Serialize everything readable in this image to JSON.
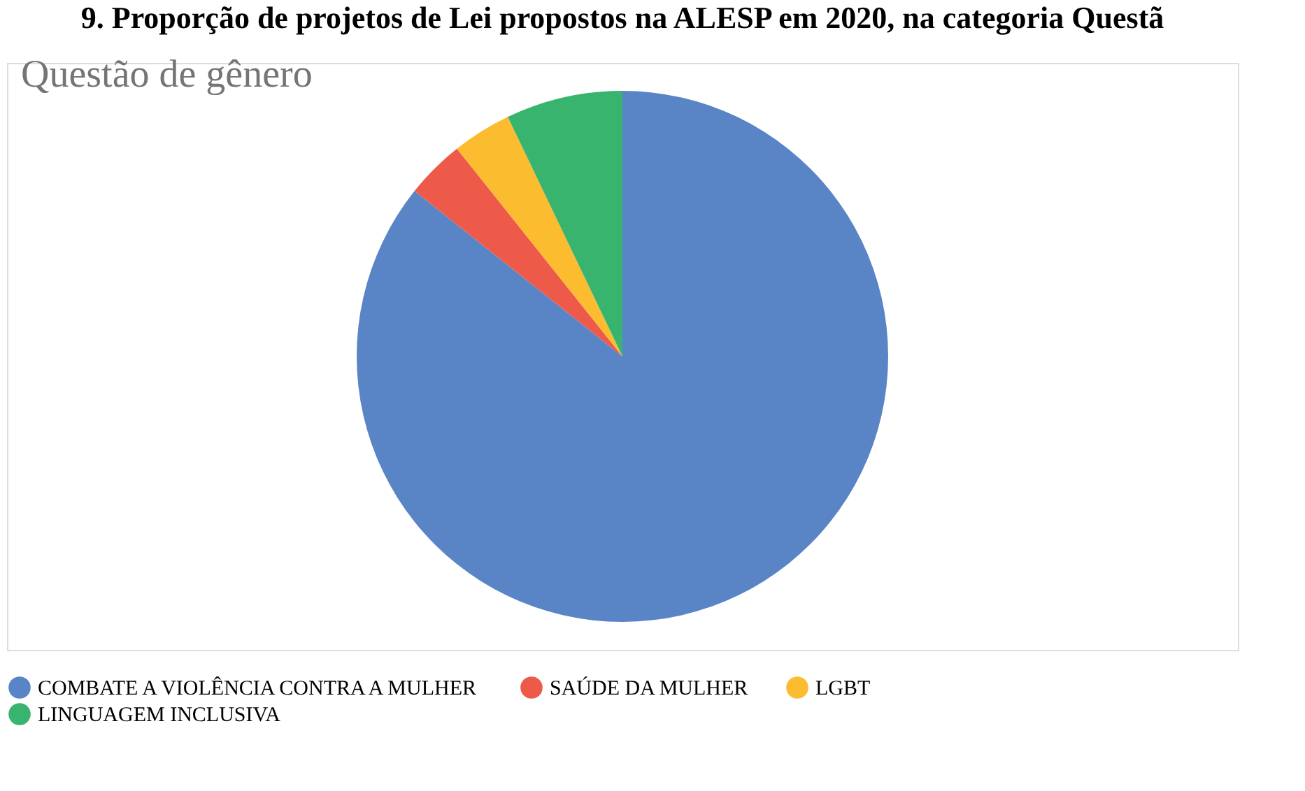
{
  "chart_data": {
    "type": "pie",
    "title": "Questão de gênero",
    "annotations": [
      "9. Proporção de projetos de Lei propostos na ALESP em 2020, na categoria Questã"
    ],
    "categories": [
      "COMBATE A VIOLÊNCIA CONTRA A MULHER",
      "SAÚDE DA MULHER",
      "LGBT",
      "LINGUAGEM INCLUSIVA"
    ],
    "values": [
      85.7,
      3.6,
      3.6,
      7.1
    ],
    "colors": [
      "#5985c6",
      "#ee5a4a",
      "#fbbd2f",
      "#38b46f"
    ],
    "legend": "bottom"
  }
}
